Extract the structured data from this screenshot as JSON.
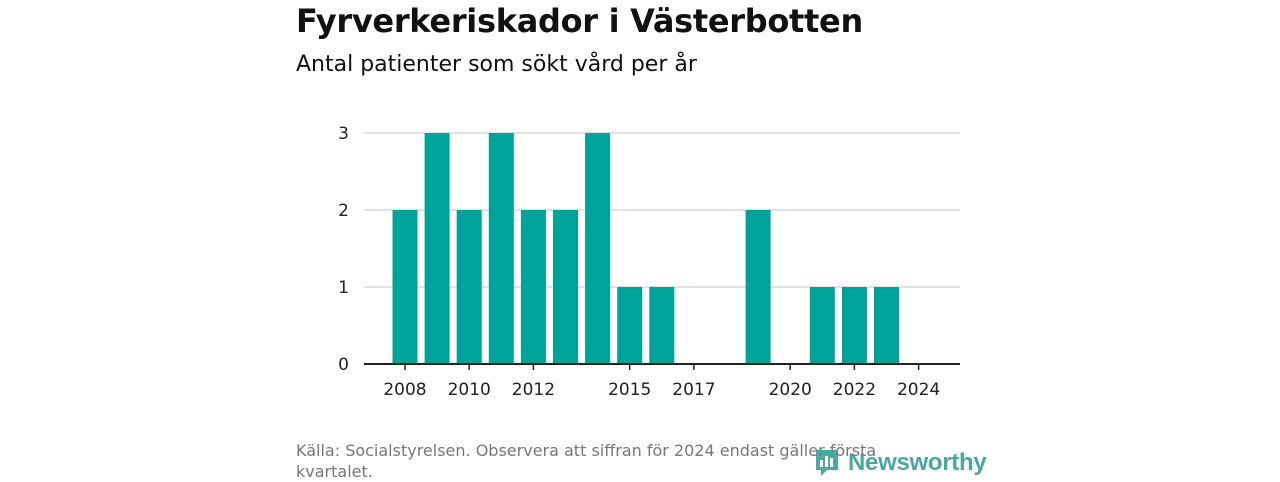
{
  "title": "Fyrverkeriskador i Västerbotten",
  "subtitle": "Antal patienter som sökt vård per år",
  "source_note": "Källa: Socialstyrelsen. Observera att siffran för 2024 endast gäller första kvartalet.",
  "logo_text": "Newsworthy",
  "colors": {
    "bar": "#00a39a",
    "grid": "#d9d9d9",
    "axis": "#222222",
    "logo": "#3aa196"
  },
  "chart_data": {
    "type": "bar",
    "x": [
      2008,
      2009,
      2010,
      2011,
      2012,
      2013,
      2014,
      2015,
      2016,
      2017,
      2018,
      2019,
      2020,
      2021,
      2022,
      2023,
      2024
    ],
    "values": [
      2,
      3,
      2,
      3,
      2,
      2,
      3,
      1,
      1,
      0,
      0,
      2,
      0,
      1,
      1,
      1,
      0
    ],
    "x_ticks": [
      "2008",
      "2010",
      "2012",
      "2015",
      "2017",
      "2020",
      "2022",
      "2024"
    ],
    "y_ticks": [
      0,
      1,
      2,
      3
    ],
    "ylim": [
      0,
      3
    ],
    "grid": true,
    "legend": "none"
  }
}
